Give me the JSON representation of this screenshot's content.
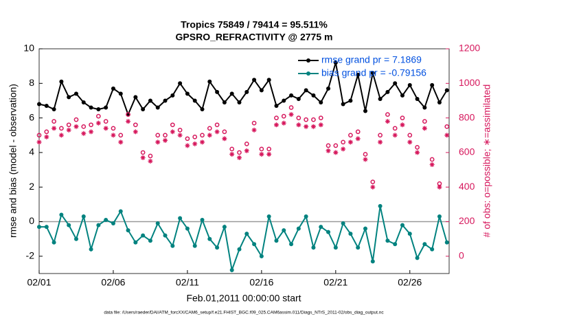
{
  "chart_data": {
    "type": "line",
    "title": "Tropics 75849 / 79414 = 95.511%",
    "subtitle": "GPSRO_REFRACTIVITY @ 2775 m",
    "x_label": "Feb.01,2011 00:00:00 start",
    "y_label": "rmse and bias (model - observation)",
    "y2_label": "# of obs: o=possible; ∗=assimilated",
    "footnote": "data file: /Users/raeder/DAI/ATM_forcXX/CAM6_setup/f.e21.FHIST_BGC.f09_025.CAM6assim.011/Diags_NTrS_2011-02/obs_diag_output.nc",
    "xlim": [
      0,
      27.65
    ],
    "xticks": [
      {
        "value": 0,
        "label": "02/01"
      },
      {
        "value": 5,
        "label": "02/06"
      },
      {
        "value": 10,
        "label": "02/11"
      },
      {
        "value": 15,
        "label": "02/16"
      },
      {
        "value": 20,
        "label": "02/21"
      },
      {
        "value": 25,
        "label": "02/26"
      }
    ],
    "ylim": [
      -3,
      10
    ],
    "yticks": [
      -2,
      0,
      2,
      4,
      6,
      8,
      10
    ],
    "y2lim": [
      -100,
      1200
    ],
    "y2ticks": [
      0,
      200,
      400,
      600,
      800,
      1000,
      1200
    ],
    "zero_line": 0,
    "x": [
      0,
      0.5,
      1,
      1.5,
      2,
      2.5,
      3,
      3.5,
      4,
      4.5,
      5,
      5.5,
      6,
      6.5,
      7,
      7.5,
      8,
      8.5,
      9,
      9.5,
      10,
      10.5,
      11,
      11.5,
      12,
      12.5,
      13,
      13.5,
      14,
      14.5,
      15,
      15.5,
      16,
      16.5,
      17,
      17.5,
      18,
      18.5,
      19,
      19.5,
      20,
      20.5,
      21,
      21.5,
      22,
      22.5,
      23,
      23.5,
      24,
      24.5,
      25,
      25.5,
      26,
      26.5,
      27,
      27.5
    ],
    "series": [
      {
        "name": "rmse grand pr = 7.1869",
        "color": "#000000",
        "marker": "dot",
        "values": [
          6.8,
          6.7,
          6.5,
          8.1,
          7.2,
          7.4,
          6.9,
          6.6,
          6.5,
          6.6,
          7.7,
          7.4,
          6.2,
          7.2,
          6.5,
          7.0,
          6.6,
          7.0,
          7.3,
          8.0,
          7.4,
          7.0,
          6.5,
          8.1,
          7.5,
          6.9,
          7.4,
          6.9,
          7.5,
          8.2,
          7.6,
          8.2,
          6.7,
          7.0,
          7.3,
          7.1,
          7.6,
          7.3,
          6.9,
          7.7,
          9.2,
          6.8,
          7.0,
          8.5,
          6.4,
          8.6,
          7.1,
          7.5,
          8.0,
          7.3,
          7.9,
          7.1,
          6.6,
          7.9,
          6.9,
          7.6
        ]
      },
      {
        "name": "bias grand pr = -0.79156",
        "color": "#00827f",
        "marker": "dot",
        "values": [
          -0.3,
          -0.3,
          -1.2,
          0.4,
          -0.2,
          -1.0,
          0.3,
          -1.6,
          -0.2,
          0.1,
          -0.1,
          0.6,
          -0.5,
          -1.2,
          -0.8,
          -1.1,
          -0.1,
          -0.8,
          -1.4,
          0.2,
          -0.4,
          -1.4,
          0.1,
          -1.0,
          -1.5,
          -0.3,
          -2.8,
          -1.6,
          -0.7,
          -1.3,
          -2.0,
          0.3,
          -1.1,
          -0.5,
          -1.3,
          -0.4,
          0.3,
          -1.5,
          -0.3,
          -0.6,
          -1.5,
          -0.1,
          -0.7,
          -1.5,
          -0.4,
          -2.3,
          0.9,
          -1.1,
          -1.3,
          -0.2,
          -0.7,
          -2.1,
          -1.3,
          -1.6,
          0.3,
          -1.2
        ]
      },
      {
        "color": "#d6175c",
        "marker": "circle",
        "axis": "y2",
        "values": [
          700,
          720,
          780,
          740,
          760,
          790,
          750,
          760,
          810,
          780,
          740,
          700,
          820,
          760,
          600,
          580,
          700,
          700,
          760,
          730,
          680,
          690,
          700,
          740,
          760,
          720,
          620,
          600,
          650,
          770,
          620,
          620,
          800,
          810,
          860,
          800,
          790,
          790,
          800,
          640,
          640,
          660,
          700,
          720,
          590,
          430,
          700,
          820,
          740,
          800,
          700,
          630,
          780,
          560,
          420,
          750
        ]
      },
      {
        "color": "#d6175c",
        "marker": "asterisk",
        "axis": "y2",
        "values": [
          660,
          690,
          740,
          700,
          730,
          750,
          710,
          720,
          770,
          740,
          700,
          660,
          780,
          720,
          570,
          550,
          660,
          670,
          720,
          700,
          640,
          650,
          660,
          700,
          720,
          680,
          590,
          570,
          610,
          730,
          590,
          590,
          760,
          770,
          820,
          760,
          750,
          750,
          760,
          610,
          600,
          620,
          660,
          680,
          560,
          400,
          660,
          780,
          700,
          760,
          660,
          600,
          740,
          530,
          400,
          700
        ]
      }
    ],
    "legend": "upper right"
  }
}
